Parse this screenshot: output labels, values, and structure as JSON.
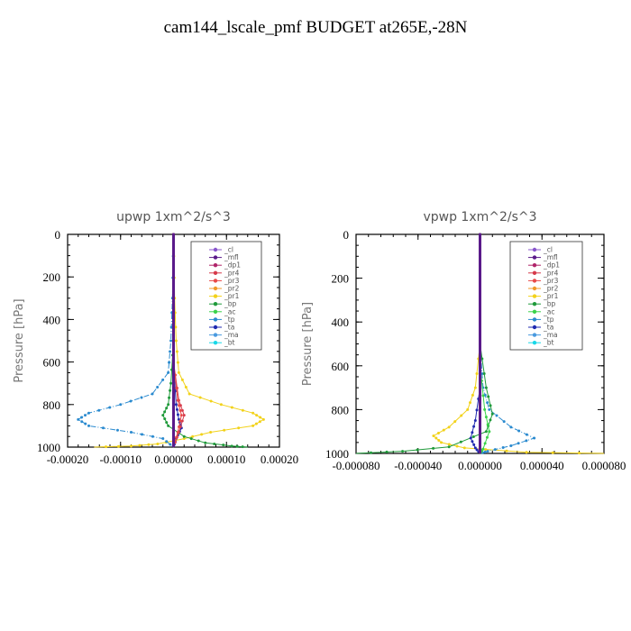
{
  "title": "cam144_lscale_pmf  BUDGET at265E,-28N",
  "legend_items": [
    {
      "label": "_cl",
      "color": "#8855cc"
    },
    {
      "label": "_mfl",
      "color": "#5a1a8a"
    },
    {
      "label": "_dp1",
      "color": "#b0246a"
    },
    {
      "label": "_pr4",
      "color": "#d63a4a"
    },
    {
      "label": "_pr3",
      "color": "#e84a4a"
    },
    {
      "label": "_pr2",
      "color": "#f09a2a"
    },
    {
      "label": "_pr1",
      "color": "#f2d21a"
    },
    {
      "label": "_bp",
      "color": "#1f9a3a"
    },
    {
      "label": "_ac",
      "color": "#3ad24a"
    },
    {
      "label": "_tp",
      "color": "#2a8acf"
    },
    {
      "label": "_ta",
      "color": "#1f2ab0"
    },
    {
      "label": "_ma",
      "color": "#4a9adf"
    },
    {
      "label": "_bt",
      "color": "#18d8e8"
    }
  ],
  "chart_data": [
    {
      "type": "line",
      "title": "upwp   1xm^2/s^3",
      "ylabel": "Pressure [hPa]",
      "xlim": [
        -0.0002,
        0.0002
      ],
      "ylim": [
        1000,
        0
      ],
      "xticks": [
        "-0.00020",
        "-0.00010",
        "0.00000",
        "0.00010",
        "0.00020"
      ],
      "yticks": [
        "0",
        "200",
        "400",
        "600",
        "800",
        "1000"
      ],
      "legend_position": "top-right",
      "series": [
        {
          "name": "_pr1",
          "points": [
            [
              0,
              0
            ],
            [
              2e-06,
              300
            ],
            [
              5e-06,
              500
            ],
            [
              1e-05,
              650
            ],
            [
              3e-05,
              750
            ],
            [
              9e-05,
              800
            ],
            [
              0.00015,
              840
            ],
            [
              0.00017,
              870
            ],
            [
              0.00015,
              900
            ],
            [
              7e-05,
              930
            ],
            [
              2e-05,
              960
            ],
            [
              -3e-05,
              985
            ],
            [
              -8e-05,
              995
            ],
            [
              -0.00015,
              1000
            ]
          ]
        },
        {
          "name": "_tp",
          "points": [
            [
              0,
              0
            ],
            [
              -2e-06,
              300
            ],
            [
              -5e-06,
              500
            ],
            [
              -1e-05,
              650
            ],
            [
              -4e-05,
              750
            ],
            [
              -0.0001,
              800
            ],
            [
              -0.00016,
              840
            ],
            [
              -0.00018,
              870
            ],
            [
              -0.00016,
              900
            ],
            [
              -8e-05,
              930
            ],
            [
              -2e-05,
              960
            ],
            [
              0,
              1000
            ]
          ]
        },
        {
          "name": "_bp",
          "points": [
            [
              0,
              0
            ],
            [
              0,
              500
            ],
            [
              -5e-06,
              700
            ],
            [
              -1e-05,
              800
            ],
            [
              -2e-05,
              850
            ],
            [
              -1e-05,
              900
            ],
            [
              2e-05,
              950
            ],
            [
              6e-05,
              980
            ],
            [
              0.00011,
              995
            ],
            [
              0.00014,
              1000
            ]
          ]
        },
        {
          "name": "_ta",
          "points": [
            [
              0,
              0
            ],
            [
              0,
              600
            ],
            [
              5e-06,
              800
            ],
            [
              1e-05,
              870
            ],
            [
              1.5e-05,
              910
            ],
            [
              5e-06,
              960
            ],
            [
              0,
              1000
            ]
          ]
        },
        {
          "name": "_pr4",
          "points": [
            [
              0,
              0
            ],
            [
              0,
              600
            ],
            [
              1e-05,
              780
            ],
            [
              2e-05,
              850
            ],
            [
              1e-05,
              930
            ],
            [
              0,
              1000
            ]
          ]
        },
        {
          "name": "_pr3",
          "points": [
            [
              0,
              0
            ],
            [
              0,
              600
            ],
            [
              8e-06,
              780
            ],
            [
              1.5e-05,
              850
            ],
            [
              8e-06,
              930
            ],
            [
              0,
              1000
            ]
          ]
        },
        {
          "name": "_dp1",
          "points": [
            [
              0,
              0
            ],
            [
              0,
              1000
            ]
          ]
        },
        {
          "name": "_mfl",
          "points": [
            [
              0,
              0
            ],
            [
              0,
              1000
            ]
          ]
        }
      ]
    },
    {
      "type": "line",
      "title": "vpwp   1xm^2/s^3",
      "ylabel": "Pressure [hPa]",
      "xlim": [
        -8e-05,
        8e-05
      ],
      "ylim": [
        1000,
        0
      ],
      "xticks": [
        "-0.000080",
        "-0.000040",
        "0.000000",
        "0.000040",
        "0.000080"
      ],
      "yticks": [
        "0",
        "200",
        "400",
        "600",
        "800",
        "1000"
      ],
      "legend_position": "top-right",
      "series": [
        {
          "name": "_pr1",
          "points": [
            [
              0,
              0
            ],
            [
              0,
              500
            ],
            [
              -3e-06,
              700
            ],
            [
              -8e-06,
              800
            ],
            [
              -2e-05,
              880
            ],
            [
              -3e-05,
              920
            ],
            [
              -2.5e-05,
              950
            ],
            [
              -1e-05,
              975
            ],
            [
              3e-05,
              995
            ],
            [
              8e-05,
              1000
            ]
          ]
        },
        {
          "name": "_tp",
          "points": [
            [
              0,
              0
            ],
            [
              0,
              500
            ],
            [
              2e-06,
              700
            ],
            [
              6e-06,
              800
            ],
            [
              2e-05,
              880
            ],
            [
              3.5e-05,
              930
            ],
            [
              2e-05,
              965
            ],
            [
              5e-06,
              990
            ],
            [
              0,
              1000
            ]
          ]
        },
        {
          "name": "_bp",
          "points": [
            [
              0,
              0
            ],
            [
              0,
              500
            ],
            [
              4e-06,
              700
            ],
            [
              8e-06,
              820
            ],
            [
              4e-06,
              900
            ],
            [
              -2e-05,
              970
            ],
            [
              -5e-05,
              990
            ],
            [
              -8e-05,
              1000
            ]
          ]
        },
        {
          "name": "_ta",
          "points": [
            [
              0,
              0
            ],
            [
              0,
              700
            ],
            [
              -3e-06,
              850
            ],
            [
              -6e-06,
              930
            ],
            [
              -3e-06,
              975
            ],
            [
              0,
              1000
            ]
          ]
        },
        {
          "name": "_ac",
          "points": [
            [
              0,
              0
            ],
            [
              0,
              600
            ],
            [
              3e-06,
              800
            ],
            [
              6e-06,
              900
            ],
            [
              2e-06,
              980
            ],
            [
              0,
              1000
            ]
          ]
        },
        {
          "name": "_dp1",
          "points": [
            [
              0,
              0
            ],
            [
              0,
              1000
            ]
          ]
        },
        {
          "name": "_mfl",
          "points": [
            [
              0,
              0
            ],
            [
              0,
              1000
            ]
          ]
        }
      ]
    }
  ]
}
